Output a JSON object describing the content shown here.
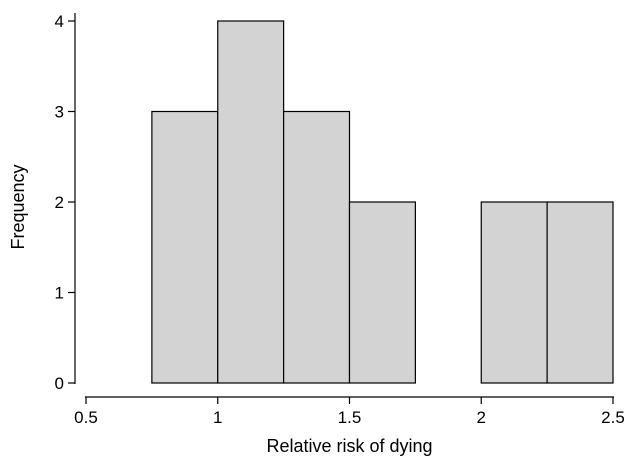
{
  "chart_data": {
    "type": "bar",
    "title": "",
    "xlabel": "Relative risk of dying",
    "ylabel": "Frequency",
    "xlim": [
      0.5,
      2.5
    ],
    "ylim": [
      0,
      4
    ],
    "x_ticks": [
      0.5,
      1,
      1.5,
      2,
      2.5
    ],
    "x_tick_labels": [
      "0.5",
      "1",
      "1.5",
      "2",
      "2.5"
    ],
    "y_ticks": [
      0,
      1,
      2,
      3,
      4
    ],
    "y_tick_labels": [
      "0",
      "1",
      "2",
      "3",
      "4"
    ],
    "bin_width": 0.25,
    "bins": [
      {
        "x_start": 0.75,
        "x_end": 1.0,
        "value": 3
      },
      {
        "x_start": 1.0,
        "x_end": 1.25,
        "value": 4
      },
      {
        "x_start": 1.25,
        "x_end": 1.5,
        "value": 3
      },
      {
        "x_start": 1.5,
        "x_end": 1.75,
        "value": 2
      },
      {
        "x_start": 2.0,
        "x_end": 2.25,
        "value": 2
      },
      {
        "x_start": 2.25,
        "x_end": 2.5,
        "value": 2
      }
    ],
    "grid": false,
    "colors": {
      "bar_fill": "#d3d3d3",
      "bar_stroke": "#000000"
    }
  }
}
